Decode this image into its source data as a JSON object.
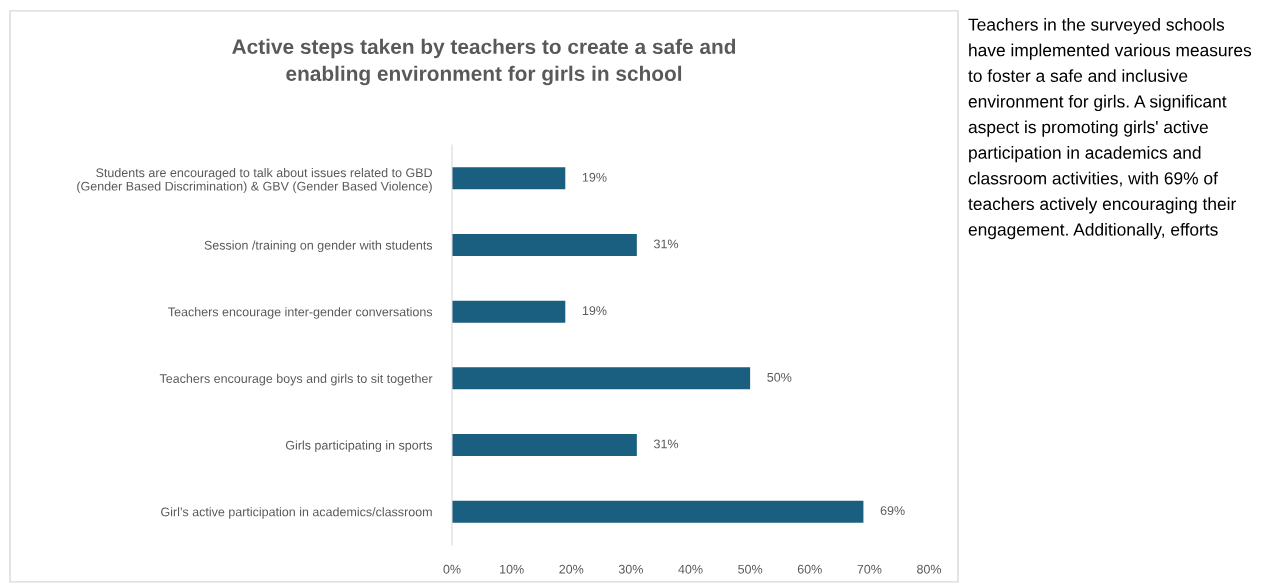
{
  "chart_data": {
    "type": "bar",
    "orientation": "horizontal",
    "title": "Active steps taken by teachers to create a safe and\nenabling environment for girls in school",
    "categories": [
      "Students are encouraged to talk about issues related to GBD\n(Gender Based Discrimination) & GBV (Gender Based Violence)",
      "Session /training on gender with students",
      "Teachers encourage inter-gender conversations",
      "Teachers encourage boys and girls to sit together",
      "Girls participating in sports",
      "Girl’s active participation in academics/classroom"
    ],
    "values": [
      19,
      31,
      19,
      50,
      31,
      69
    ],
    "value_labels": [
      "19%",
      "31%",
      "19%",
      "50%",
      "31%",
      "69%"
    ],
    "color": "#1a5e80",
    "xlim": [
      0,
      80
    ],
    "xticks": [
      {
        "value": 0,
        "label": "0%"
      },
      {
        "value": 10,
        "label": "10%"
      },
      {
        "value": 20,
        "label": "20%"
      },
      {
        "value": 30,
        "label": "30%"
      },
      {
        "value": 40,
        "label": "40%"
      },
      {
        "value": 50,
        "label": "50%"
      },
      {
        "value": 60,
        "label": "60%"
      },
      {
        "value": 70,
        "label": "70%"
      },
      {
        "value": 80,
        "label": "80%"
      }
    ],
    "grid": false,
    "annotations": [
      "Teachers in the surveyed schools have implemented various measures to foster a safe and inclusive environment for girls. A significant aspect is promoting girls' active participation in academics and classroom activities, with 69% of teachers actively encouraging their engagement. Additionally, efforts"
    ]
  }
}
